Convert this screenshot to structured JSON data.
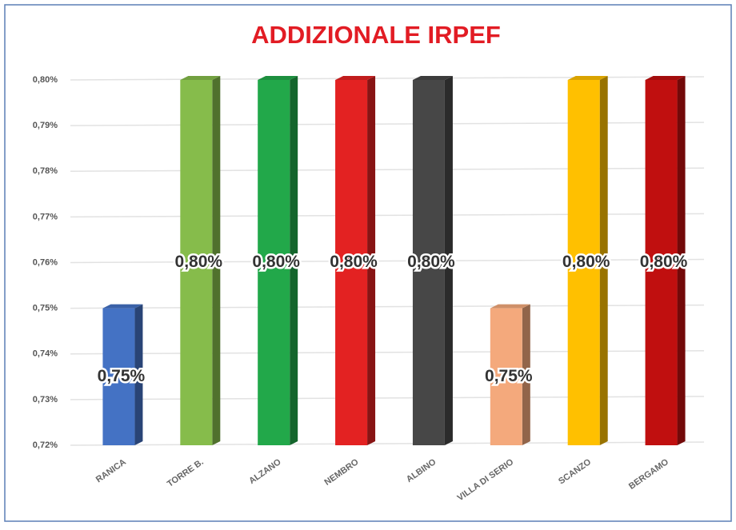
{
  "chart_data": {
    "type": "bar3d",
    "title": "ADDIZIONALE IRPEF",
    "categories": [
      "RANICA",
      "TORRE B.",
      "ALZANO",
      "NEMBRO",
      "ALBINO",
      "VILLA DI SERIO",
      "SCANZO",
      "BERGAMO"
    ],
    "values": [
      0.75,
      0.8,
      0.8,
      0.8,
      0.8,
      0.75,
      0.8,
      0.8
    ],
    "value_labels": [
      "0,75%",
      "0,80%",
      "0,80%",
      "0,80%",
      "0,80%",
      "0,75%",
      "0,80%",
      "0,80%"
    ],
    "colors": [
      "#4472c4",
      "#86bc4b",
      "#22a84a",
      "#e32222",
      "#474747",
      "#f4a97c",
      "#ffc000",
      "#c00f0f"
    ],
    "ylim": [
      0.72,
      0.8
    ],
    "yticks": [
      {
        "value": 0.72,
        "label": "0,72%"
      },
      {
        "value": 0.73,
        "label": "0,73%"
      },
      {
        "value": 0.74,
        "label": "0,74%"
      },
      {
        "value": 0.75,
        "label": "0,75%"
      },
      {
        "value": 0.76,
        "label": "0,76%"
      },
      {
        "value": 0.77,
        "label": "0,77%"
      },
      {
        "value": 0.78,
        "label": "0,78%"
      },
      {
        "value": 0.79,
        "label": "0,79%"
      },
      {
        "value": 0.8,
        "label": "0,80%"
      }
    ],
    "grid": true
  }
}
